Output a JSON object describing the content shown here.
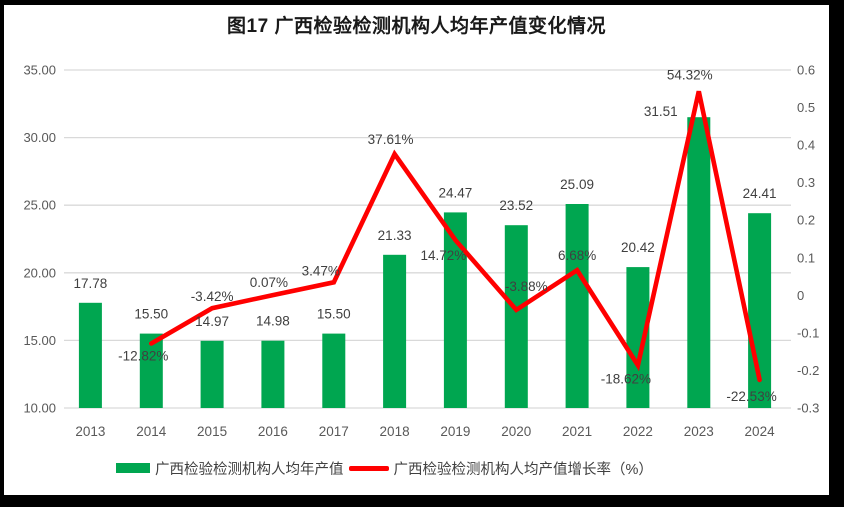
{
  "chart_data": {
    "type": "combo bar+line, dual y-axis",
    "title": "图17  广西检验检测机构人均年产值变化情况",
    "categories": [
      "2013",
      "2014",
      "2015",
      "2016",
      "2017",
      "2018",
      "2019",
      "2020",
      "2021",
      "2022",
      "2023",
      "2024"
    ],
    "series": [
      {
        "name": "广西检验检测机构人均年产值",
        "type": "bar",
        "axis": "left",
        "color": "#00A650",
        "values": [
          17.78,
          15.5,
          14.97,
          14.98,
          15.5,
          21.33,
          24.47,
          23.52,
          25.09,
          20.42,
          31.51,
          24.41
        ],
        "labels": [
          "17.78",
          "15.50",
          "14.97",
          "14.98",
          "15.50",
          "21.33",
          "24.47",
          "23.52",
          "25.09",
          "20.42",
          "31.51",
          "24.41"
        ]
      },
      {
        "name": "广西检验检测机构人均产值增长率（%）",
        "type": "line",
        "axis": "right",
        "color": "#FF0000",
        "values": [
          null,
          -0.1282,
          -0.0342,
          0.0007,
          0.0347,
          0.3761,
          0.1472,
          -0.0388,
          0.0668,
          -0.1862,
          0.5432,
          -0.2253
        ],
        "labels": [
          null,
          "-12.82%",
          "-3.42%",
          "0.07%",
          "3.47%",
          "37.61%",
          "14.72%",
          "-3.88%",
          "6.68%",
          "-18.62%",
          "54.32%",
          "-22.53%"
        ]
      }
    ],
    "left_axis": {
      "min": 10,
      "max": 35,
      "ticks": [
        "10.00",
        "15.00",
        "20.00",
        "25.00",
        "30.00",
        "35.00"
      ]
    },
    "right_axis": {
      "min": -0.3,
      "max": 0.6,
      "ticks": [
        "-0.3",
        "-0.2",
        "-0.1",
        "0",
        "0.1",
        "0.2",
        "0.3",
        "0.4",
        "0.5",
        "0.6"
      ]
    },
    "grid": true,
    "legend_position": "bottom",
    "colors": {
      "bar": "#00A650",
      "line": "#FF0000",
      "grid": "#D9D9D9",
      "axis_text": "#595959",
      "data_label": "#404040",
      "title_text": "#1a1a1a"
    }
  }
}
